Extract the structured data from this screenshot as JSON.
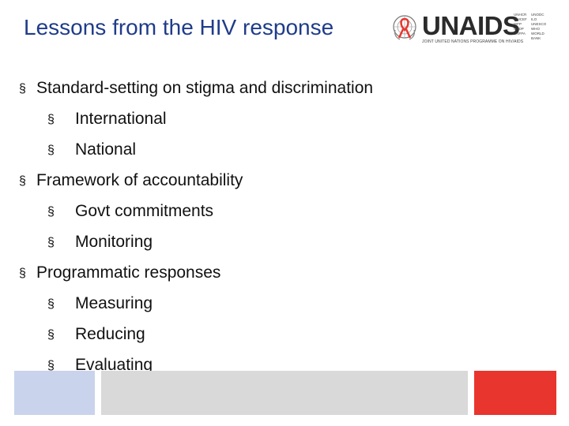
{
  "slide": {
    "title": "Lessons from the HIV response",
    "bullet_glyph": "§",
    "items": [
      {
        "level": 1,
        "text": "Standard-setting on stigma and discrimination"
      },
      {
        "level": 2,
        "text": "International"
      },
      {
        "level": 2,
        "text": "National"
      },
      {
        "level": 1,
        "text": "Framework of accountability"
      },
      {
        "level": 2,
        "text": "Govt commitments"
      },
      {
        "level": 2,
        "text": "Monitoring"
      },
      {
        "level": 1,
        "text": "Programmatic responses"
      },
      {
        "level": 2,
        "text": "Measuring"
      },
      {
        "level": 2,
        "text": "Reducing"
      },
      {
        "level": 2,
        "text": "Evaluating"
      }
    ]
  },
  "logo": {
    "name": "UNAIDS",
    "tagline": "JOINT UNITED NATIONS PROGRAMME ON HIV/AIDS",
    "cosponsors_col1": [
      "UNHCR",
      "UNICEF",
      "WFP",
      "UNDP",
      "UNFPA"
    ],
    "cosponsors_col2": [
      "UNODC",
      "ILO",
      "UNESCO",
      "WHO",
      "WORLD BANK"
    ],
    "icon": "un-emblem-ribbon-icon",
    "ribbon_color": "#e8352d"
  },
  "colors": {
    "title": "#1f3c8a",
    "footer_blue": "#c9d3ec",
    "footer_gray": "#d9d9d9",
    "footer_red": "#e8352d"
  }
}
